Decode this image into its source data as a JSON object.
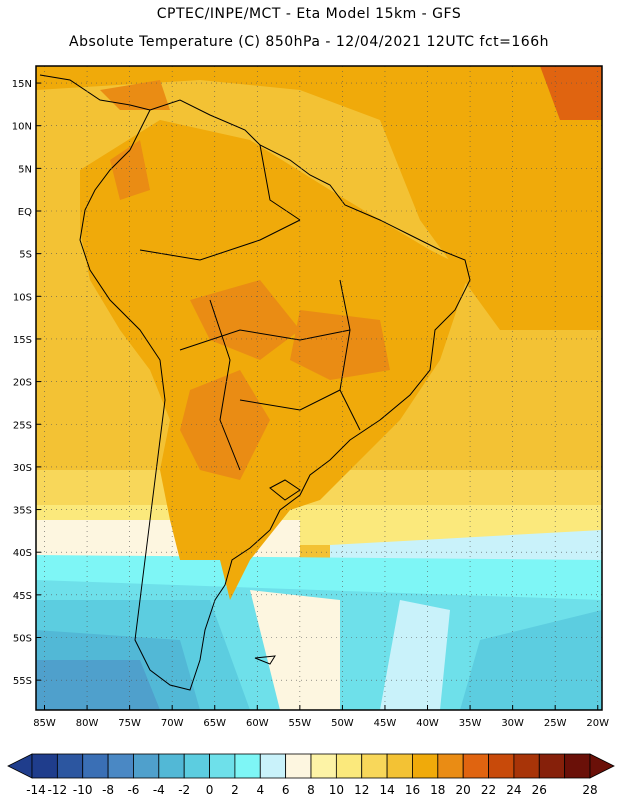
{
  "header": {
    "line1": "CPTEC/INPE/MCT -   Eta Model 15km - GFS",
    "line2": "Absolute Temperature (C) 850hPa - 12/04/2021 12UTC fct=166h"
  },
  "axes": {
    "lat_labels": [
      "15N",
      "10N",
      "5N",
      "EQ",
      "5S",
      "10S",
      "15S",
      "20S",
      "25S",
      "30S",
      "35S",
      "40S",
      "45S",
      "50S",
      "55S"
    ],
    "lon_labels": [
      "85W",
      "80W",
      "75W",
      "70W",
      "65W",
      "60W",
      "55W",
      "50W",
      "45W",
      "40W",
      "35W",
      "30W",
      "25W",
      "20W"
    ]
  },
  "colorbar": {
    "labels": [
      "-14",
      "-12",
      "-10",
      "-8",
      "-6",
      "-4",
      "-2",
      "0",
      "2",
      "4",
      "6",
      "8",
      "10",
      "12",
      "14",
      "16",
      "18",
      "20",
      "22",
      "24",
      "26",
      "28"
    ],
    "colors": [
      "#1f3d8c",
      "#2c56a0",
      "#3a6fb5",
      "#4a88c4",
      "#4fa0cc",
      "#52b8d6",
      "#5ccde0",
      "#6ee0ea",
      "#7ef6f6",
      "#c9f2fa",
      "#fdf6e0",
      "#fdf3a6",
      "#fbe97c",
      "#f8d75a",
      "#f3c234",
      "#f0aa0a",
      "#ea8c14",
      "#e06410",
      "#c84a0a",
      "#a83408",
      "#86200a",
      "#6a1008"
    ]
  },
  "palette": {
    "ocean_north": "#f3c234",
    "land_warm": "#f0aa0a",
    "land_hot": "#ea8c14",
    "coast_line": "#000000"
  }
}
